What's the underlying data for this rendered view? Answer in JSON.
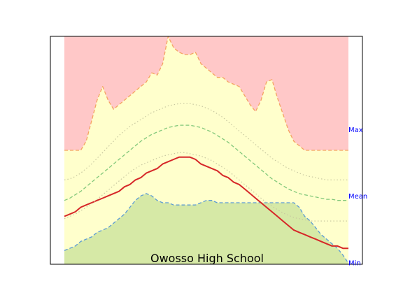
{
  "chart_data": {
    "type": "area",
    "title": "Owosso High School",
    "xlabel": "",
    "ylabel": "",
    "x": [
      0,
      1,
      2,
      3,
      4,
      5,
      6,
      7,
      8,
      9,
      10,
      11,
      12,
      13,
      14,
      15,
      16,
      17,
      18,
      19,
      20,
      21,
      22,
      23,
      24,
      25,
      26,
      27,
      28,
      29,
      30,
      31,
      32,
      33,
      34,
      35,
      36,
      37,
      38,
      39,
      40,
      41,
      42,
      43,
      44,
      45,
      46,
      47,
      48,
      49,
      50,
      51,
      52
    ],
    "xlim": [
      0,
      52
    ],
    "ylim": [
      0,
      100
    ],
    "grid": false,
    "annotations": [
      {
        "text": "Max",
        "at": 59.1
      },
      {
        "text": "Mean",
        "at": 29.9
      },
      {
        "text": "Min",
        "at": 0.6
      }
    ],
    "series": [
      {
        "values": [
          50,
          50,
          50,
          50,
          54,
          63,
          72,
          78,
          72,
          68,
          70,
          72,
          74,
          76,
          78,
          80,
          84,
          83,
          88,
          100,
          95,
          93,
          92,
          92,
          93,
          88,
          86,
          84,
          82,
          82,
          80,
          79,
          78,
          74,
          70,
          67,
          72,
          80,
          81,
          73,
          66,
          59,
          54,
          52,
          50,
          50,
          50,
          50,
          50,
          50,
          50,
          50,
          50
        ],
        "color": "#f4a460",
        "style": "dashed"
      },
      {
        "values": [
          6,
          7,
          8,
          10,
          11,
          12,
          14,
          15,
          16,
          18,
          20,
          22,
          25,
          28,
          30,
          31,
          30,
          28,
          27,
          27,
          26,
          26,
          26,
          26,
          26,
          27,
          28,
          28,
          27,
          27,
          27,
          27,
          27,
          27,
          27,
          27,
          27,
          27,
          27,
          27,
          27,
          27,
          27,
          25,
          21,
          19,
          16,
          13,
          11,
          9,
          7,
          4,
          0.5
        ],
        "color": "#5b9bd5",
        "style": "dashed"
      },
      {
        "values": [
          21,
          22,
          23,
          25,
          26,
          27,
          28,
          29,
          30,
          31,
          32,
          34,
          35,
          37,
          38,
          40,
          41,
          42,
          44,
          45,
          46,
          47,
          47,
          47,
          46,
          44,
          43,
          42,
          41,
          39,
          38,
          36,
          35,
          33,
          31,
          29,
          27,
          25,
          23,
          21,
          19,
          17,
          15,
          14,
          13,
          12,
          11,
          10,
          9,
          8,
          8,
          7,
          7
        ],
        "color": "#d62728",
        "style": "solid"
      },
      {
        "values": [
          37,
          37.5,
          38.5,
          40,
          42,
          44,
          46.5,
          49,
          51.5,
          54,
          56.5,
          58.5,
          60.5,
          62,
          63.5,
          65,
          66.5,
          67.5,
          68.5,
          69.5,
          70,
          70.5,
          70.5,
          70.5,
          70,
          69.5,
          68.5,
          67.5,
          66,
          64.5,
          62.5,
          60.5,
          58.5,
          56.5,
          54.5,
          52.5,
          50.5,
          48.5,
          46.5,
          45,
          43.5,
          42,
          41,
          40,
          39,
          38.5,
          38,
          37.5,
          37,
          37,
          37,
          37,
          37
        ],
        "color": "#c8c8a0",
        "style": "dotted"
      },
      {
        "values": [
          28,
          29,
          30.5,
          32,
          34,
          36,
          38,
          40,
          42,
          44,
          46,
          48,
          50,
          52,
          54,
          55.5,
          57,
          58,
          59,
          60,
          60.5,
          61,
          61,
          61,
          60.5,
          60,
          59,
          58,
          56.5,
          55,
          53.5,
          51.5,
          49.5,
          47.5,
          45.5,
          43.5,
          41.5,
          39.5,
          37.5,
          36,
          34.5,
          33,
          32,
          31,
          30.5,
          30,
          29.5,
          29,
          28.5,
          28.5,
          28,
          28,
          28
        ],
        "color": "#82c87a",
        "style": "dashed"
      },
      {
        "values": [
          20,
          21,
          22,
          23.5,
          25,
          26.5,
          28.5,
          30.5,
          32.5,
          34.5,
          36.5,
          38.5,
          40.5,
          42,
          43.5,
          44.5,
          45.5,
          46.5,
          47.5,
          48,
          48.5,
          49,
          49,
          48.5,
          48,
          47.5,
          46.5,
          45.5,
          44,
          42.5,
          41,
          39,
          37,
          35,
          33,
          31,
          29,
          27,
          25.5,
          24,
          22.5,
          21.5,
          20.5,
          20,
          19.5,
          19,
          19,
          19,
          19,
          19,
          19,
          19,
          19
        ],
        "color": "#c8c8a0",
        "style": "dotted"
      }
    ],
    "bands": {
      "above_max": "#ffc8c8",
      "max_to_min": "#ffffcc",
      "below_min": "#d6e9a6"
    }
  }
}
